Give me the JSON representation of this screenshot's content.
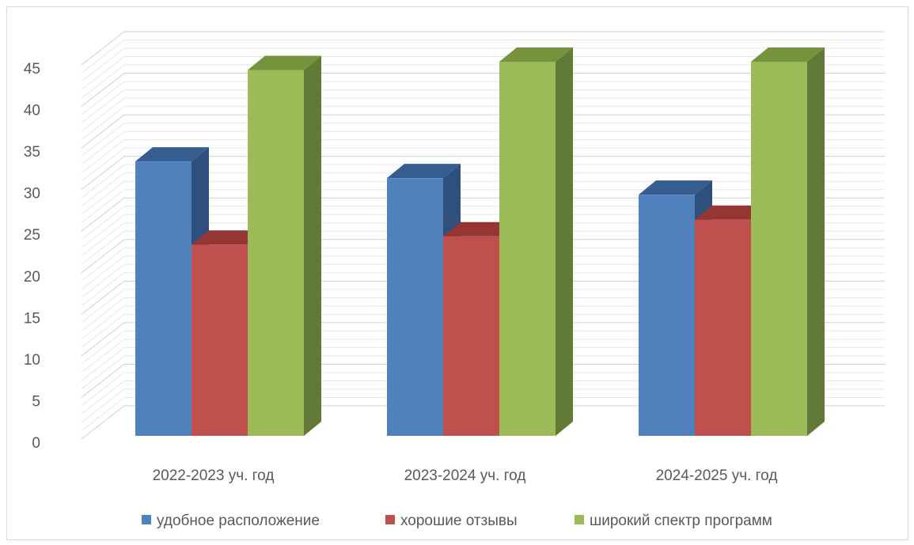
{
  "chart_data": {
    "type": "bar",
    "style": "3d-clustered-column",
    "categories": [
      "2022-2023 уч. год",
      "2023-2024 уч. год",
      "2024-2025 уч. год"
    ],
    "series": [
      {
        "name": "удобное расположение",
        "values": [
          33,
          31,
          29
        ],
        "color": "#4f81bd",
        "top_color": "#365d8f",
        "side_color": "#2f4f7d"
      },
      {
        "name": "хорошие отзывы",
        "values": [
          23,
          24,
          26
        ],
        "color": "#c0504d",
        "top_color": "#943634",
        "side_color": "#8c3431"
      },
      {
        "name": "широкий спектр программ",
        "values": [
          44,
          45,
          45
        ],
        "color": "#9bbb59",
        "top_color": "#76923c",
        "side_color": "#617a35"
      }
    ],
    "y_ticks": [
      "0",
      "5",
      "10",
      "15",
      "20",
      "25",
      "30",
      "35",
      "40",
      "45"
    ],
    "ylim": [
      0,
      45
    ],
    "grid": true,
    "legend_position": "bottom",
    "title": "",
    "xlabel": "",
    "ylabel": ""
  }
}
